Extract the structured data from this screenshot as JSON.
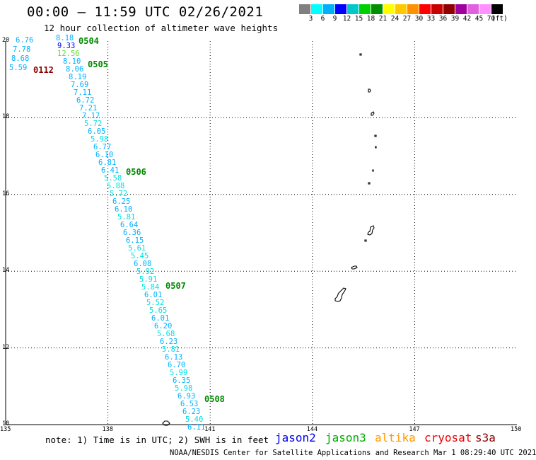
{
  "header": {
    "title": "00:00 – 11:59 UTC 02/26/2021",
    "subtitle": "12 hour collection of altimeter wave heights"
  },
  "legend": {
    "colors": [
      "#808080",
      "#00ffff",
      "#00b0ff",
      "#0000ff",
      "#00c8c8",
      "#00d000",
      "#009000",
      "#ffff00",
      "#ffc800",
      "#ff9000",
      "#ff0000",
      "#c80000",
      "#900000",
      "#a000a0",
      "#e060e0",
      "#ff90ff",
      "#000000"
    ],
    "labels": [
      "3",
      "6",
      "9",
      "12",
      "15",
      "18",
      "21",
      "24",
      "27",
      "30",
      "33",
      "36",
      "39",
      "42",
      "45",
      "70",
      "(ft)"
    ]
  },
  "map": {
    "lat_labels": [
      "20",
      "18",
      "16",
      "14",
      "12",
      "10"
    ],
    "lon_labels": [
      "135",
      "138",
      "141",
      "144",
      "147",
      "150"
    ]
  },
  "swh_readings": [
    {
      "v": "6.76",
      "c": "#00b0ff"
    },
    {
      "v": "7.78",
      "c": "#00b0ff"
    },
    {
      "v": "8.68",
      "c": "#00b0ff"
    },
    {
      "v": "5.59",
      "c": "#00b0ff"
    },
    {
      "v": "8.18",
      "c": "#00b0ff"
    },
    {
      "v": "9.33",
      "c": "#0000ff"
    },
    {
      "v": "12.56",
      "c": "#66dd33"
    },
    {
      "v": "8.10",
      "c": "#00b0ff"
    },
    {
      "v": "8.06",
      "c": "#00b0ff"
    },
    {
      "v": "8.19",
      "c": "#00b0ff"
    },
    {
      "v": "7.69",
      "c": "#00b0ff"
    },
    {
      "v": "7.11",
      "c": "#00b0ff"
    },
    {
      "v": "6.72",
      "c": "#00b0ff"
    },
    {
      "v": "7.21",
      "c": "#00b0ff"
    },
    {
      "v": "7.17",
      "c": "#00b0ff"
    },
    {
      "v": "5.72",
      "c": "#00e0e0"
    },
    {
      "v": "6.05",
      "c": "#00b0ff"
    },
    {
      "v": "5.98",
      "c": "#00e0e0"
    },
    {
      "v": "6.77",
      "c": "#00b0ff"
    },
    {
      "v": "6.10",
      "c": "#00b0ff"
    },
    {
      "v": "6.81",
      "c": "#00b0ff"
    },
    {
      "v": "6.41",
      "c": "#00b0ff"
    },
    {
      "v": "5.58",
      "c": "#00e0e0"
    },
    {
      "v": "5.88",
      "c": "#00e0e0"
    },
    {
      "v": "5.72",
      "c": "#00e0e0"
    },
    {
      "v": "6.25",
      "c": "#00b0ff"
    },
    {
      "v": "6.10",
      "c": "#00b0ff"
    },
    {
      "v": "5.81",
      "c": "#00e0e0"
    },
    {
      "v": "6.64",
      "c": "#00b0ff"
    },
    {
      "v": "6.36",
      "c": "#00b0ff"
    },
    {
      "v": "6.15",
      "c": "#00b0ff"
    },
    {
      "v": "5.61",
      "c": "#00e0e0"
    },
    {
      "v": "5.45",
      "c": "#00e0e0"
    },
    {
      "v": "6.08",
      "c": "#00b0ff"
    },
    {
      "v": "5.92",
      "c": "#00e0e0"
    },
    {
      "v": "5.91",
      "c": "#00e0e0"
    },
    {
      "v": "5.84",
      "c": "#00e0e0"
    },
    {
      "v": "6.01",
      "c": "#00b0ff"
    },
    {
      "v": "5.52",
      "c": "#00e0e0"
    },
    {
      "v": "5.65",
      "c": "#00e0e0"
    },
    {
      "v": "6.01",
      "c": "#00b0ff"
    },
    {
      "v": "6.20",
      "c": "#00b0ff"
    },
    {
      "v": "5.68",
      "c": "#00e0e0"
    },
    {
      "v": "6.23",
      "c": "#00b0ff"
    },
    {
      "v": "5.81",
      "c": "#00e0e0"
    },
    {
      "v": "6.13",
      "c": "#00b0ff"
    },
    {
      "v": "6.70",
      "c": "#00b0ff"
    },
    {
      "v": "5.99",
      "c": "#00e0e0"
    },
    {
      "v": "6.35",
      "c": "#00b0ff"
    },
    {
      "v": "5.98",
      "c": "#00e0e0"
    },
    {
      "v": "6.93",
      "c": "#00b0ff"
    },
    {
      "v": "6.53",
      "c": "#00b0ff"
    },
    {
      "v": "6.23",
      "c": "#00b0ff"
    },
    {
      "v": "5.40",
      "c": "#00e0e0"
    },
    {
      "v": "6.11",
      "c": "#00b0ff"
    }
  ],
  "time_labels": [
    {
      "v": "0504",
      "c": "#008800"
    },
    {
      "v": "0112",
      "c": "#880000"
    },
    {
      "v": "0505",
      "c": "#008800"
    },
    {
      "v": "0506",
      "c": "#008800"
    },
    {
      "v": "0507",
      "c": "#008800"
    },
    {
      "v": "0508",
      "c": "#008800"
    }
  ],
  "footer": {
    "note": "note: 1) Time is in UTC; 2) SWH is in feet",
    "satellites": [
      {
        "name": "jason2",
        "color": "#0000ee"
      },
      {
        "name": "jason3",
        "color": "#00aa00"
      },
      {
        "name": "altika",
        "color": "#ff9900"
      },
      {
        "name": "cryosat",
        "color": "#ee0000"
      },
      {
        "name": "s3a",
        "color": "#880000"
      }
    ],
    "credit": "NOAA/NESDIS Center for Satellite Applications and Research    Mar  1 08:29:40 UTC 2021"
  }
}
